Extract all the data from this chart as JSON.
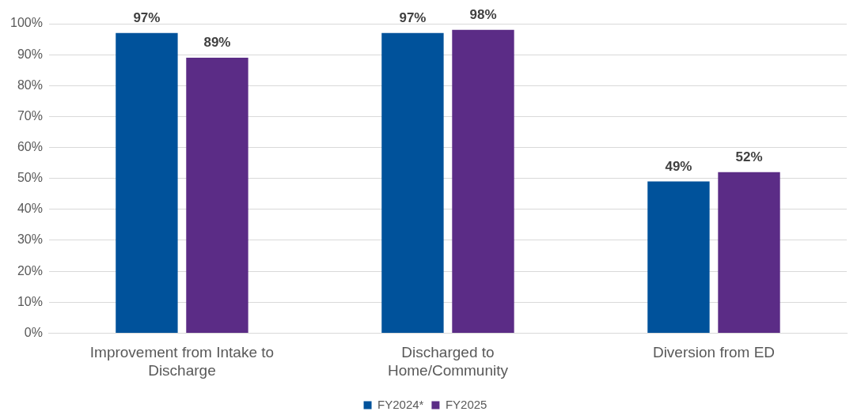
{
  "chart_data": {
    "type": "bar",
    "categories": [
      "Improvement from Intake to Discharge",
      "Discharged to Home/Community",
      "Diversion from ED"
    ],
    "series": [
      {
        "name": "FY2024*",
        "color": "#00529b",
        "values": [
          97,
          97,
          49
        ],
        "value_labels": [
          "97%",
          "97%",
          "49%"
        ]
      },
      {
        "name": "FY2025",
        "color": "#5b2c86",
        "values": [
          89,
          98,
          52
        ],
        "value_labels": [
          "89%",
          "98%",
          "52%"
        ]
      }
    ],
    "ylim": [
      0,
      100
    ],
    "yticks": [
      {
        "value": 0,
        "label": "0%"
      },
      {
        "value": 10,
        "label": "10%"
      },
      {
        "value": 20,
        "label": "20%"
      },
      {
        "value": 30,
        "label": "30%"
      },
      {
        "value": 40,
        "label": "40%"
      },
      {
        "value": 50,
        "label": "50%"
      },
      {
        "value": 60,
        "label": "60%"
      },
      {
        "value": 70,
        "label": "70%"
      },
      {
        "value": 80,
        "label": "80%"
      },
      {
        "value": 90,
        "label": "90%"
      },
      {
        "value": 100,
        "label": "100%"
      }
    ],
    "grid": "y",
    "legend": "bottom"
  }
}
